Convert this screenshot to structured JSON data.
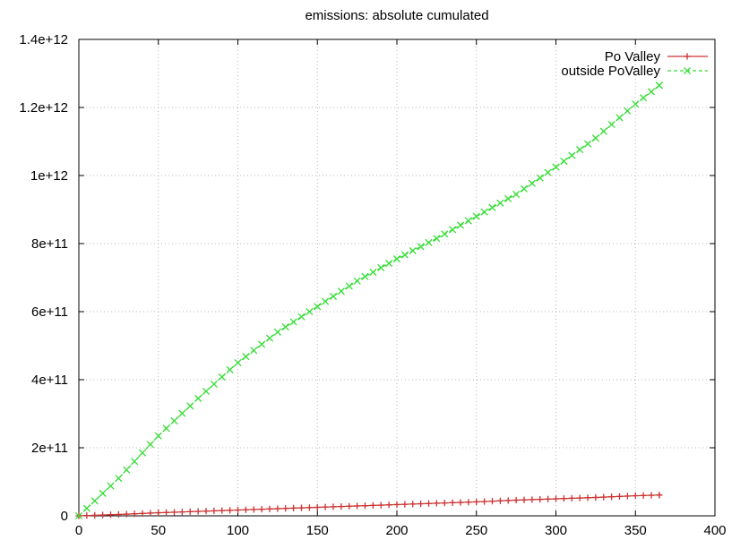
{
  "chart_data": {
    "type": "line",
    "title": "emissions: absolute cumulated",
    "xlabel": "",
    "ylabel": "",
    "xlim": [
      0,
      400
    ],
    "ylim": [
      0,
      1400000000000
    ],
    "x_ticks": [
      0,
      50,
      100,
      150,
      200,
      250,
      300,
      350,
      400
    ],
    "x_tick_labels": [
      "0",
      "50",
      "100",
      "150",
      "200",
      "250",
      "300",
      "350",
      "400"
    ],
    "y_ticks": [
      0,
      200000000000,
      400000000000,
      600000000000,
      800000000000,
      1000000000000,
      1200000000000,
      1400000000000
    ],
    "y_tick_labels": [
      "0",
      "2e+11",
      "4e+11",
      "6e+11",
      "8e+11",
      "1e+12",
      "1.2e+12",
      "1.4e+12"
    ],
    "grid": true,
    "legend_position": "top-right",
    "series": [
      {
        "name": "Po Valley",
        "color": "#cc3333",
        "marker": "plus",
        "line": "solid",
        "x": [
          0,
          25,
          50,
          75,
          100,
          125,
          150,
          175,
          200,
          225,
          250,
          275,
          300,
          325,
          350,
          365
        ],
        "y": [
          0,
          4000000000,
          9000000000,
          13000000000,
          17000000000,
          21000000000,
          25000000000,
          29000000000,
          33000000000,
          37000000000,
          41000000000,
          46000000000,
          50000000000,
          54000000000,
          59000000000,
          61000000000
        ]
      },
      {
        "name": "outside PoValley",
        "color": "#33dd33",
        "marker": "x",
        "line": "dashed",
        "x": [
          0,
          25,
          50,
          75,
          100,
          125,
          150,
          175,
          200,
          225,
          250,
          275,
          300,
          325,
          350,
          365
        ],
        "y": [
          0,
          110000000000,
          235000000000,
          345000000000,
          450000000000,
          540000000000,
          615000000000,
          690000000000,
          755000000000,
          815000000000,
          880000000000,
          945000000000,
          1025000000000,
          1110000000000,
          1210000000000,
          1265000000000
        ]
      }
    ]
  }
}
